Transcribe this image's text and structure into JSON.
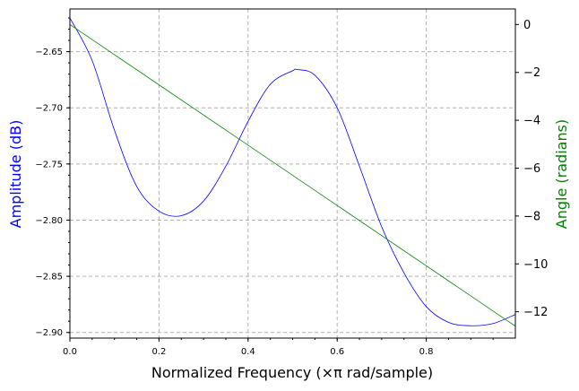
{
  "chart_data": {
    "type": "line",
    "xlabel": "Normalized Frequency (×π rad/sample)",
    "ylabel_left": "Amplitude (dB)",
    "ylabel_right": "Angle (radians)",
    "xlim": [
      0,
      1
    ],
    "ylim_left": [
      -2.905,
      -2.612
    ],
    "ylim_right": [
      -13.1,
      0.65
    ],
    "grid": true,
    "x_ticks": [
      "0.0",
      "0.2",
      "0.4",
      "0.6",
      "0.8"
    ],
    "x_tick_values": [
      0.0,
      0.2,
      0.4,
      0.6,
      0.8
    ],
    "y_left_ticks": [
      "−2.65",
      "−2.70",
      "−2.75",
      "−2.80",
      "−2.85",
      "−2.90"
    ],
    "y_left_tick_values": [
      -2.65,
      -2.7,
      -2.75,
      -2.8,
      -2.85,
      -2.9
    ],
    "y_right_ticks": [
      "0",
      "−2",
      "−4",
      "−6",
      "−8",
      "−10",
      "−12"
    ],
    "y_right_tick_values": [
      0,
      -2,
      -4,
      -6,
      -8,
      -10,
      -12
    ],
    "series": [
      {
        "axis": "left",
        "color": "#0000ff",
        "x": [
          0.0,
          0.05,
          0.1,
          0.15,
          0.2,
          0.25,
          0.3,
          0.35,
          0.4,
          0.45,
          0.5,
          0.51,
          0.55,
          0.6,
          0.65,
          0.7,
          0.75,
          0.8,
          0.85,
          0.9,
          0.95,
          1.0
        ],
        "y": [
          -2.62,
          -2.658,
          -2.72,
          -2.77,
          -2.792,
          -2.796,
          -2.783,
          -2.752,
          -2.712,
          -2.679,
          -2.667,
          -2.666,
          -2.671,
          -2.7,
          -2.752,
          -2.806,
          -2.847,
          -2.877,
          -2.891,
          -2.894,
          -2.892,
          -2.884
        ]
      },
      {
        "axis": "right",
        "color": "#008000",
        "x": [
          0.0,
          1.0
        ],
        "y": [
          0.0,
          -12.6
        ]
      }
    ],
    "colors": {
      "left_axis_label": "#0000ff",
      "right_axis_label": "#008000",
      "grid": "#b0b0b0"
    }
  }
}
